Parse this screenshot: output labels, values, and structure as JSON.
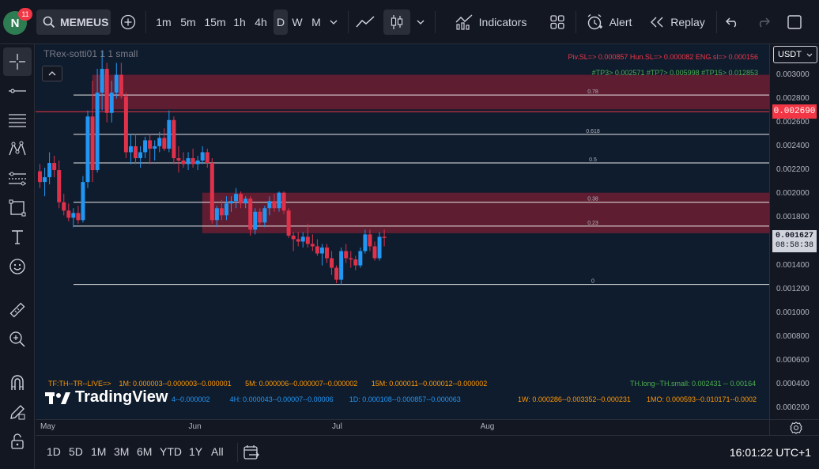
{
  "toolbar": {
    "avatar_letter": "N",
    "notifications": "11",
    "symbol": "MEMEUSI",
    "intervals": [
      "1m",
      "5m",
      "15m",
      "1h",
      "4h",
      "D",
      "W",
      "M"
    ],
    "active_interval": "D",
    "indicators_label": "Indicators",
    "alert_label": "Alert",
    "replay_label": "Replay"
  },
  "legend": {
    "indicator_title": "TRex-sotti01 1 1 small"
  },
  "chart_data": {
    "type": "candlestick",
    "currency": "USDT",
    "y_ticks": [
      "0.003000",
      "0.002800",
      "0.002600",
      "0.002400",
      "0.002200",
      "0.002000",
      "0.001800",
      "0.001600",
      "0.001400",
      "0.001200",
      "0.001000",
      "0.000800",
      "0.000600",
      "0.000400",
      "0.000200"
    ],
    "y_tick_values": [
      0.003,
      0.0028,
      0.0026,
      0.0024,
      0.0022,
      0.002,
      0.0018,
      0.0016,
      0.0014,
      0.0012,
      0.001,
      0.0008,
      0.0006,
      0.0004,
      0.0002
    ],
    "ylim": [
      0.000109,
      0.003256
    ],
    "x_labels": [
      {
        "label": "May",
        "index": -0.5
      },
      {
        "label": "Jun",
        "index": 30.5
      },
      {
        "label": "Jul",
        "index": 60.5
      },
      {
        "label": "Aug",
        "index": 91.5
      }
    ],
    "last_price": "0.001627",
    "countdown": "08:58:38",
    "marker_price": "0.002690",
    "marker_value": 0.00269,
    "fib_levels": [
      {
        "label": "0.78",
        "value": 0.00283
      },
      {
        "label": "0.618",
        "value": 0.0025
      },
      {
        "label": "0.5",
        "value": 0.00226
      },
      {
        "label": "0.38",
        "value": 0.00193
      },
      {
        "label": "0.23",
        "value": 0.00173
      },
      {
        "label": "0",
        "value": 0.00124
      }
    ],
    "zones": [
      {
        "from_index": 12,
        "to_index": null,
        "top": 0.003,
        "bottom": 0.00271
      },
      {
        "from_index": 35,
        "to_index": null,
        "top": 0.00201,
        "bottom": 0.00167
      }
    ],
    "candles": [
      {
        "o": 0.00219,
        "h": 0.00225,
        "l": 0.00205,
        "c": 0.0021
      },
      {
        "o": 0.0021,
        "h": 0.00222,
        "l": 0.00198,
        "c": 0.00214
      },
      {
        "o": 0.00214,
        "h": 0.00235,
        "l": 0.00208,
        "c": 0.00226
      },
      {
        "o": 0.00226,
        "h": 0.00232,
        "l": 0.00214,
        "c": 0.0022
      },
      {
        "o": 0.0022,
        "h": 0.00228,
        "l": 0.00188,
        "c": 0.00193
      },
      {
        "o": 0.00193,
        "h": 0.002,
        "l": 0.00182,
        "c": 0.00186
      },
      {
        "o": 0.00186,
        "h": 0.00192,
        "l": 0.00177,
        "c": 0.0018
      },
      {
        "o": 0.0018,
        "h": 0.00188,
        "l": 0.00172,
        "c": 0.00184
      },
      {
        "o": 0.00184,
        "h": 0.0019,
        "l": 0.00175,
        "c": 0.00178
      },
      {
        "o": 0.00178,
        "h": 0.00215,
        "l": 0.00176,
        "c": 0.0021
      },
      {
        "o": 0.0021,
        "h": 0.0027,
        "l": 0.00205,
        "c": 0.00265
      },
      {
        "o": 0.00265,
        "h": 0.00295,
        "l": 0.0021,
        "c": 0.0022
      },
      {
        "o": 0.0022,
        "h": 0.00305,
        "l": 0.00218,
        "c": 0.00285
      },
      {
        "o": 0.00285,
        "h": 0.0032,
        "l": 0.0027,
        "c": 0.00305
      },
      {
        "o": 0.00305,
        "h": 0.0031,
        "l": 0.0026,
        "c": 0.00268
      },
      {
        "o": 0.00268,
        "h": 0.00295,
        "l": 0.0026,
        "c": 0.00285
      },
      {
        "o": 0.00285,
        "h": 0.0031,
        "l": 0.0028,
        "c": 0.003
      },
      {
        "o": 0.003,
        "h": 0.0031,
        "l": 0.0028,
        "c": 0.00282
      },
      {
        "o": 0.00282,
        "h": 0.00285,
        "l": 0.0023,
        "c": 0.00235
      },
      {
        "o": 0.00235,
        "h": 0.0025,
        "l": 0.00225,
        "c": 0.0024
      },
      {
        "o": 0.0024,
        "h": 0.0025,
        "l": 0.00225,
        "c": 0.0023
      },
      {
        "o": 0.0023,
        "h": 0.0024,
        "l": 0.00222,
        "c": 0.00235
      },
      {
        "o": 0.00235,
        "h": 0.00248,
        "l": 0.0023,
        "c": 0.00245
      },
      {
        "o": 0.00245,
        "h": 0.0025,
        "l": 0.00225,
        "c": 0.00238
      },
      {
        "o": 0.00238,
        "h": 0.00245,
        "l": 0.00228,
        "c": 0.0024
      },
      {
        "o": 0.0024,
        "h": 0.00252,
        "l": 0.00235,
        "c": 0.00247
      },
      {
        "o": 0.00247,
        "h": 0.00255,
        "l": 0.00236,
        "c": 0.00238
      },
      {
        "o": 0.00238,
        "h": 0.0027,
        "l": 0.00235,
        "c": 0.00262
      },
      {
        "o": 0.00262,
        "h": 0.00265,
        "l": 0.00225,
        "c": 0.0023
      },
      {
        "o": 0.0023,
        "h": 0.0024,
        "l": 0.00218,
        "c": 0.00228
      },
      {
        "o": 0.00228,
        "h": 0.00235,
        "l": 0.00222,
        "c": 0.00225
      },
      {
        "o": 0.00225,
        "h": 0.00235,
        "l": 0.0022,
        "c": 0.0023
      },
      {
        "o": 0.0023,
        "h": 0.00238,
        "l": 0.00222,
        "c": 0.00225
      },
      {
        "o": 0.00225,
        "h": 0.00232,
        "l": 0.0022,
        "c": 0.00228
      },
      {
        "o": 0.00228,
        "h": 0.0024,
        "l": 0.00225,
        "c": 0.00235
      },
      {
        "o": 0.00235,
        "h": 0.00238,
        "l": 0.00222,
        "c": 0.00226
      },
      {
        "o": 0.00226,
        "h": 0.0023,
        "l": 0.00175,
        "c": 0.00178
      },
      {
        "o": 0.00178,
        "h": 0.0019,
        "l": 0.00172,
        "c": 0.00188
      },
      {
        "o": 0.00188,
        "h": 0.00195,
        "l": 0.00178,
        "c": 0.00182
      },
      {
        "o": 0.00182,
        "h": 0.00198,
        "l": 0.00178,
        "c": 0.00192
      },
      {
        "o": 0.00192,
        "h": 0.00198,
        "l": 0.00185,
        "c": 0.00194
      },
      {
        "o": 0.00194,
        "h": 0.00205,
        "l": 0.00188,
        "c": 0.002
      },
      {
        "o": 0.002,
        "h": 0.00202,
        "l": 0.00188,
        "c": 0.00192
      },
      {
        "o": 0.00192,
        "h": 0.00198,
        "l": 0.00188,
        "c": 0.00196
      },
      {
        "o": 0.00196,
        "h": 0.00198,
        "l": 0.00165,
        "c": 0.0017
      },
      {
        "o": 0.0017,
        "h": 0.00188,
        "l": 0.00166,
        "c": 0.00185
      },
      {
        "o": 0.00185,
        "h": 0.00188,
        "l": 0.00174,
        "c": 0.00176
      },
      {
        "o": 0.00176,
        "h": 0.0019,
        "l": 0.00172,
        "c": 0.00188
      },
      {
        "o": 0.00188,
        "h": 0.00198,
        "l": 0.00182,
        "c": 0.00194
      },
      {
        "o": 0.00194,
        "h": 0.002,
        "l": 0.00185,
        "c": 0.00188
      },
      {
        "o": 0.00188,
        "h": 0.00202,
        "l": 0.00185,
        "c": 0.00201
      },
      {
        "o": 0.00201,
        "h": 0.00202,
        "l": 0.00183,
        "c": 0.00186
      },
      {
        "o": 0.00186,
        "h": 0.00188,
        "l": 0.00163,
        "c": 0.00165
      },
      {
        "o": 0.00165,
        "h": 0.00168,
        "l": 0.00152,
        "c": 0.00162
      },
      {
        "o": 0.00162,
        "h": 0.00168,
        "l": 0.00156,
        "c": 0.0016
      },
      {
        "o": 0.0016,
        "h": 0.00168,
        "l": 0.00155,
        "c": 0.00164
      },
      {
        "o": 0.00164,
        "h": 0.00175,
        "l": 0.00155,
        "c": 0.00158
      },
      {
        "o": 0.00158,
        "h": 0.00166,
        "l": 0.00152,
        "c": 0.00156
      },
      {
        "o": 0.00156,
        "h": 0.00162,
        "l": 0.00148,
        "c": 0.0015
      },
      {
        "o": 0.0015,
        "h": 0.00158,
        "l": 0.0014,
        "c": 0.00155
      },
      {
        "o": 0.00155,
        "h": 0.00158,
        "l": 0.00142,
        "c": 0.00146
      },
      {
        "o": 0.00146,
        "h": 0.00152,
        "l": 0.00132,
        "c": 0.00138
      },
      {
        "o": 0.00138,
        "h": 0.0014,
        "l": 0.00125,
        "c": 0.00128
      },
      {
        "o": 0.00128,
        "h": 0.00155,
        "l": 0.00124,
        "c": 0.00152
      },
      {
        "o": 0.00152,
        "h": 0.00158,
        "l": 0.00142,
        "c": 0.00146
      },
      {
        "o": 0.00146,
        "h": 0.00152,
        "l": 0.00138,
        "c": 0.00145
      },
      {
        "o": 0.00145,
        "h": 0.00148,
        "l": 0.00136,
        "c": 0.0014
      },
      {
        "o": 0.0014,
        "h": 0.00155,
        "l": 0.00138,
        "c": 0.00152
      },
      {
        "o": 0.00152,
        "h": 0.0017,
        "l": 0.0015,
        "c": 0.00166
      },
      {
        "o": 0.00166,
        "h": 0.0017,
        "l": 0.00152,
        "c": 0.00156
      },
      {
        "o": 0.00156,
        "h": 0.0016,
        "l": 0.00144,
        "c": 0.00146
      },
      {
        "o": 0.00146,
        "h": 0.00168,
        "l": 0.00144,
        "c": 0.00164
      },
      {
        "o": 0.00164,
        "h": 0.0017,
        "l": 0.00156,
        "c": 0.00163
      }
    ]
  },
  "annotations": {
    "sl_line": "Piv.SL=> 0.000857  Hun.SL=> 0.000082  ENG.sl=> 0.000156",
    "tp_line": "#TP3> 0.002571  #TP7> 0.005998  #TP15> 0.012853",
    "tf_prefix": "TF:TH--TR--LIVE=>",
    "tf_1m": "1M: 0.000003--0.000003--0.000001",
    "tf_5m": "5M: 0.000006--0.000007--0.000002",
    "tf_15m": "15M: 0.000011--0.000012--0.000002",
    "tf_1h_tail": "4--0.000002",
    "tf_4h": "4H: 0.000043--0.00007--0.00006",
    "tf_1d": "1D: 0.000108--0.000857--0.000063",
    "th_long": "TH.long--TH.small: 0.002431 -- 0.00164",
    "tf_1w": "1W: 0.000286--0.003352--0.000231",
    "tf_1mo": "1MO: 0.000593--0.010171--0.0002"
  },
  "watermark": "TradingView",
  "bottom": {
    "ranges": [
      "1D",
      "5D",
      "1M",
      "3M",
      "6M",
      "YTD",
      "1Y",
      "All"
    ],
    "clock": "16:01:22 UTC+1"
  },
  "colors": {
    "up": "#2196f3",
    "down": "#e0314b",
    "zone": "#7a1e33",
    "marker": "#f23645"
  }
}
